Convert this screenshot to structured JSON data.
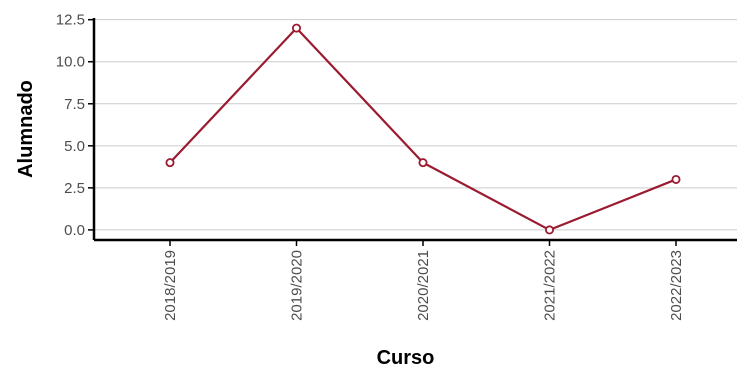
{
  "chart_data": {
    "type": "line",
    "title": "",
    "xlabel": "Curso",
    "ylabel": "Alumnado",
    "categories": [
      "2018/2019",
      "2019/2020",
      "2020/2021",
      "2021/2022",
      "2022/2023"
    ],
    "series": [
      {
        "values": [
          4,
          12,
          4,
          0,
          3
        ]
      }
    ],
    "ylim": [
      -0.6,
      12.6
    ],
    "yticks": [
      0,
      2.5,
      5,
      7.5,
      10,
      12.5
    ],
    "ytick_labels": [
      "0.0",
      "2.5",
      "5.0",
      "7.5",
      "10.0",
      "12.5"
    ],
    "grid": "horizontal",
    "legend": "none",
    "line_color": "#9b1b30"
  }
}
